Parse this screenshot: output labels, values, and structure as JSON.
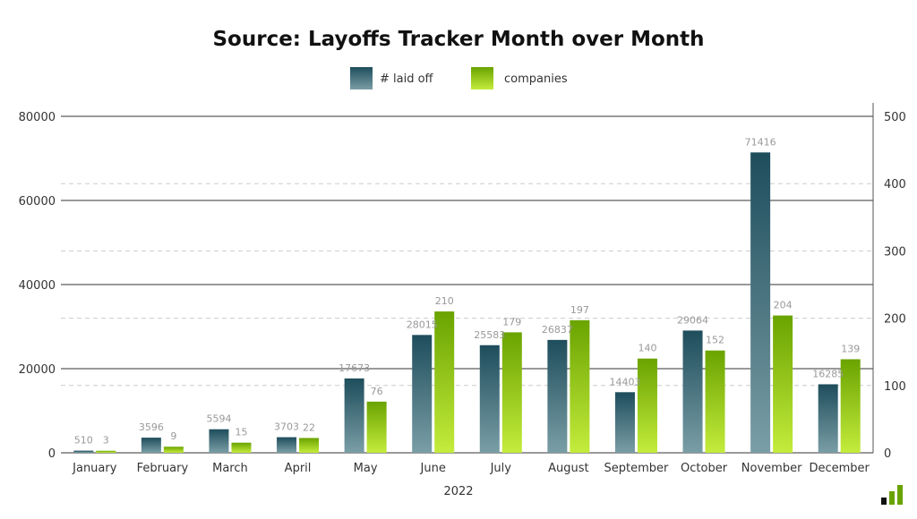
{
  "chart_data": {
    "type": "bar",
    "title": "Source: Layoffs Tracker Month over Month",
    "xlabel": "2022",
    "categories": [
      "January",
      "February",
      "March",
      "April",
      "May",
      "June",
      "July",
      "August",
      "September",
      "October",
      "November",
      "December"
    ],
    "series": [
      {
        "name": "#  laid off",
        "axis": "left",
        "values": [
          510,
          3596,
          5594,
          3703,
          17673,
          28015,
          25583,
          26837,
          14403,
          29064,
          71416,
          16285
        ],
        "color_top": "#1e4d5c",
        "color_bottom": "#7a9ea6"
      },
      {
        "name": "companies",
        "axis": "right",
        "values": [
          3,
          9,
          15,
          22,
          76,
          210,
          179,
          197,
          140,
          152,
          204,
          139
        ],
        "color_top": "#6aa300",
        "color_bottom": "#c4ec3c"
      }
    ],
    "ylim_left": [
      0,
      80000
    ],
    "yticks_left": [
      "0",
      "20000",
      "40000",
      "60000",
      "80000"
    ],
    "ylim_right": [
      0,
      500
    ],
    "yticks_right": [
      "0",
      "100",
      "200",
      "300",
      "400",
      "500"
    ],
    "grid": true,
    "legend": "top"
  },
  "logo": {
    "colors": [
      "#111111",
      "#6aa300",
      "#6aa300"
    ]
  }
}
